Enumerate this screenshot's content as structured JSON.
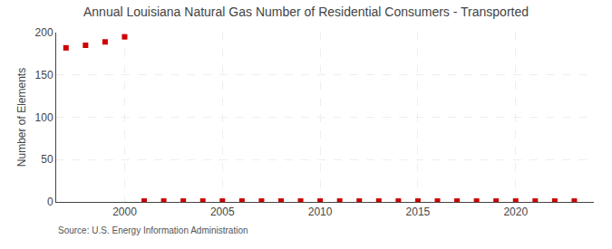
{
  "chart_data": {
    "type": "scatter",
    "title": "Annual Louisiana Natural Gas Number of Residential Consumers - Transported",
    "ylabel": "Number of Elements",
    "annotations": [
      "Source: U.S. Energy Information Administration"
    ],
    "x": [
      1997,
      1998,
      1999,
      2000,
      2001,
      2002,
      2003,
      2004,
      2005,
      2006,
      2007,
      2008,
      2009,
      2010,
      2011,
      2012,
      2013,
      2014,
      2015,
      2016,
      2017,
      2018,
      2019,
      2020,
      2021,
      2022,
      2023
    ],
    "values": [
      182,
      185,
      189,
      195,
      1,
      1,
      1,
      1,
      1,
      1,
      1,
      1,
      1,
      1,
      1,
      1,
      1,
      1,
      1,
      1,
      1,
      1,
      1,
      1,
      1,
      1,
      1
    ],
    "color": "#cc0000",
    "marker": "square",
    "xlim": [
      1996.5,
      2024
    ],
    "xticks": [
      2000,
      2005,
      2010,
      2015,
      2020
    ],
    "ylim": [
      0,
      200
    ],
    "yticks": [
      0,
      50,
      100,
      150,
      200
    ],
    "grid": true
  }
}
